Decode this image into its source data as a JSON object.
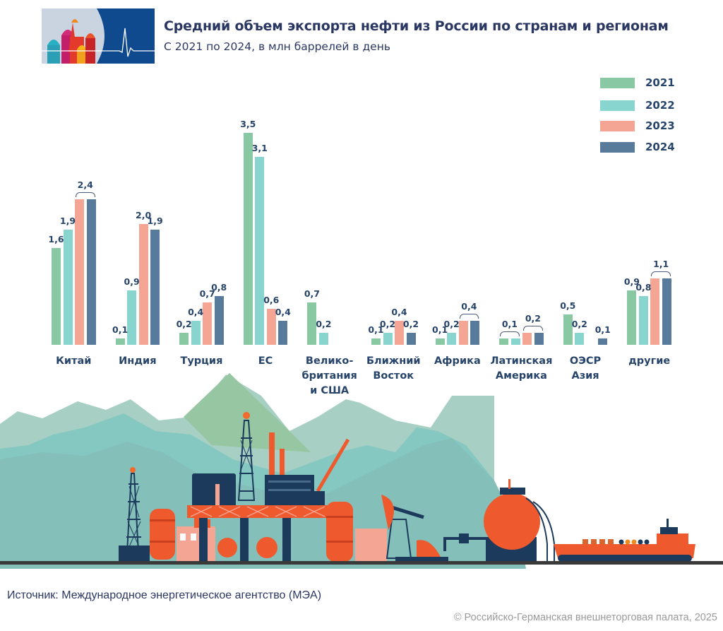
{
  "header": {
    "title": "Средний объем экспорта нефти из России по странам и регионам",
    "subtitle": "С 2021 по 2024, в млн баррелей в день",
    "logo_icon": "kremlin-cathedral-heartbeat-logo"
  },
  "legend": [
    {
      "label": "2021",
      "color": "#88c9a3"
    },
    {
      "label": "2022",
      "color": "#88d5d0"
    },
    {
      "label": "2023",
      "color": "#f5a594"
    },
    {
      "label": "2024",
      "color": "#587a9b"
    }
  ],
  "chart_data": {
    "type": "bar",
    "title": "Средний объем экспорта нефти из России по странам и регионам",
    "subtitle": "С 2021 по 2024, в млн баррелей в день",
    "xlabel": "",
    "ylabel": "млн баррелей в день",
    "ylim": [
      0,
      3.5
    ],
    "grid": false,
    "legend_position": "top-right",
    "categories": [
      "Китай",
      "Индия",
      "Турция",
      "ЕС",
      "Великобритания и США",
      "Ближний Восток",
      "Африка",
      "Латинская Америка",
      "ОЭСР Азия",
      "другие"
    ],
    "series": [
      {
        "name": "2021",
        "color": "#88c9a3",
        "values": [
          1.6,
          0.1,
          0.2,
          3.5,
          0.7,
          0.1,
          0.1,
          0.1,
          0.5,
          0.9
        ]
      },
      {
        "name": "2022",
        "color": "#88d5d0",
        "values": [
          1.9,
          0.9,
          0.4,
          3.1,
          0.2,
          0.2,
          0.2,
          0.1,
          0.2,
          0.8
        ]
      },
      {
        "name": "2023",
        "color": "#f5a594",
        "values": [
          2.4,
          2.0,
          0.7,
          0.6,
          0.0,
          0.4,
          0.4,
          0.2,
          0.0,
          1.1
        ]
      },
      {
        "name": "2024",
        "color": "#587a9b",
        "values": [
          2.4,
          1.9,
          0.8,
          0.4,
          0.0,
          0.2,
          0.4,
          0.2,
          0.1,
          1.1
        ]
      }
    ]
  },
  "groups": [
    {
      "label_lines": [
        "Китай"
      ],
      "labels": [
        {
          "text": "1,6",
          "bar": 0
        },
        {
          "text": "1,9",
          "bar": 1
        },
        {
          "text": "2,4",
          "bars": [
            2,
            3
          ]
        }
      ]
    },
    {
      "label_lines": [
        "Индия"
      ],
      "labels": [
        {
          "text": "0,1",
          "bar": 0
        },
        {
          "text": "0,9",
          "bar": 1
        },
        {
          "text": "2,0",
          "bar": 2
        },
        {
          "text": "1,9",
          "bar": 3
        }
      ]
    },
    {
      "label_lines": [
        "Турция"
      ],
      "labels": [
        {
          "text": "0,2",
          "bar": 0
        },
        {
          "text": "0,4",
          "bar": 1
        },
        {
          "text": "0,7",
          "bar": 2
        },
        {
          "text": "0,8",
          "bar": 3
        }
      ]
    },
    {
      "label_lines": [
        "ЕС"
      ],
      "labels": [
        {
          "text": "3,5",
          "bar": 0
        },
        {
          "text": "3,1",
          "bar": 1
        },
        {
          "text": "0,6",
          "bar": 2
        },
        {
          "text": "0,4",
          "bar": 3
        }
      ]
    },
    {
      "label_lines": [
        "Велико-",
        "британия",
        "и США"
      ],
      "labels": [
        {
          "text": "0,7",
          "bar": 0
        },
        {
          "text": "0,2",
          "bar": 1
        }
      ]
    },
    {
      "label_lines": [
        "Ближний",
        "Восток"
      ],
      "labels": [
        {
          "text": "0,1",
          "bar": 0
        },
        {
          "text": "0,2",
          "bar": 1
        },
        {
          "text": "0,4",
          "bar": 2
        },
        {
          "text": "0,2",
          "bar": 3
        }
      ]
    },
    {
      "label_lines": [
        "Африка"
      ],
      "labels": [
        {
          "text": "0,1",
          "bar": 0
        },
        {
          "text": "0,2",
          "bar": 1
        },
        {
          "text": "0,4",
          "bars": [
            2,
            3
          ]
        }
      ]
    },
    {
      "label_lines": [
        "Латинская",
        "Америка"
      ],
      "labels": [
        {
          "text": "0,1",
          "bars": [
            0,
            1
          ]
        },
        {
          "text": "0,2",
          "bars": [
            2,
            3
          ]
        }
      ]
    },
    {
      "label_lines": [
        "ОЭСР",
        "Азия"
      ],
      "labels": [
        {
          "text": "0,5",
          "bar": 0
        },
        {
          "text": "0,2",
          "bar": 1
        },
        {
          "text": "0,1",
          "bar": 3
        }
      ]
    },
    {
      "label_lines": [
        "другие"
      ],
      "labels": [
        {
          "text": "0,9",
          "bar": 0
        },
        {
          "text": "0,8",
          "bar": 1
        },
        {
          "text": "1,1",
          "bars": [
            2,
            3
          ]
        }
      ]
    }
  ],
  "illustration": {
    "icons": [
      "mountains",
      "oil-derrick-icon",
      "oil-platform-icon",
      "refinery-icon",
      "storage-tank-icon",
      "pumpjack-icon",
      "pipeline-valve-icon",
      "spherical-tank-icon",
      "oil-tanker-ship-icon"
    ],
    "colors": {
      "mountain_light": "#9cc8c0",
      "mountain_mid": "#84c4bc",
      "mountain_green": "#94c4a0",
      "navy": "#1b3a5c",
      "orange": "#ee5a2d",
      "salmon": "#f5a594",
      "ground": "#3a3a3a"
    }
  },
  "footer": {
    "source": "Источник: Международное энергетическое агентство (МЭА)",
    "copyright": "© Российско-Германская внешнеторговая палата, 2025"
  }
}
